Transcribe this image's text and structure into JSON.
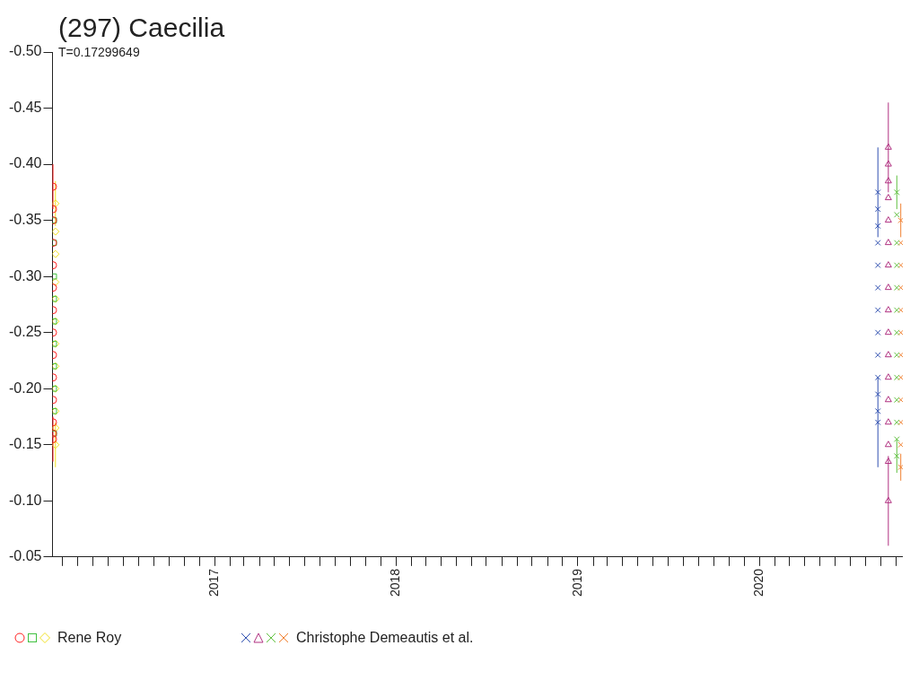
{
  "chart_data": {
    "type": "scatter",
    "title": "(297) Caecilia",
    "subtitle": "T=0.17299649",
    "xlim": [
      "2016-02-10",
      "2020-10-15"
    ],
    "ylim": [
      -0.05,
      -0.5
    ],
    "yticks": [
      {
        "value": -0.5,
        "label": "-0.50"
      },
      {
        "value": -0.45,
        "label": "-0.45"
      },
      {
        "value": -0.4,
        "label": "-0.40"
      },
      {
        "value": -0.35,
        "label": "-0.35"
      },
      {
        "value": -0.3,
        "label": "-0.30"
      },
      {
        "value": -0.25,
        "label": "-0.25"
      },
      {
        "value": -0.2,
        "label": "-0.20"
      },
      {
        "value": -0.15,
        "label": "-0.15"
      },
      {
        "value": -0.1,
        "label": "-0.10"
      },
      {
        "value": -0.05,
        "label": "-0.05"
      }
    ],
    "xticks": [
      {
        "value": "2016-03-01",
        "label": null
      },
      {
        "value": "2016-04-01",
        "label": null
      },
      {
        "value": "2016-05-01",
        "label": null
      },
      {
        "value": "2016-06-01",
        "label": null
      },
      {
        "value": "2016-07-01",
        "label": null
      },
      {
        "value": "2016-08-01",
        "label": null
      },
      {
        "value": "2016-09-01",
        "label": null
      },
      {
        "value": "2016-10-01",
        "label": null
      },
      {
        "value": "2016-11-01",
        "label": null
      },
      {
        "value": "2016-12-01",
        "label": null
      },
      {
        "value": "2017-01-01",
        "label": "2017"
      },
      {
        "value": "2017-02-01",
        "label": null
      },
      {
        "value": "2017-03-01",
        "label": null
      },
      {
        "value": "2017-04-01",
        "label": null
      },
      {
        "value": "2017-05-01",
        "label": null
      },
      {
        "value": "2017-06-01",
        "label": null
      },
      {
        "value": "2017-07-01",
        "label": null
      },
      {
        "value": "2017-08-01",
        "label": null
      },
      {
        "value": "2017-09-01",
        "label": null
      },
      {
        "value": "2017-10-01",
        "label": null
      },
      {
        "value": "2017-11-01",
        "label": null
      },
      {
        "value": "2017-12-01",
        "label": null
      },
      {
        "value": "2018-01-01",
        "label": "2018"
      },
      {
        "value": "2018-02-01",
        "label": null
      },
      {
        "value": "2018-03-01",
        "label": null
      },
      {
        "value": "2018-04-01",
        "label": null
      },
      {
        "value": "2018-05-01",
        "label": null
      },
      {
        "value": "2018-06-01",
        "label": null
      },
      {
        "value": "2018-07-01",
        "label": null
      },
      {
        "value": "2018-08-01",
        "label": null
      },
      {
        "value": "2018-09-01",
        "label": null
      },
      {
        "value": "2018-10-01",
        "label": null
      },
      {
        "value": "2018-11-01",
        "label": null
      },
      {
        "value": "2018-12-01",
        "label": null
      },
      {
        "value": "2019-01-01",
        "label": "2019"
      },
      {
        "value": "2019-02-01",
        "label": null
      },
      {
        "value": "2019-03-01",
        "label": null
      },
      {
        "value": "2019-04-01",
        "label": null
      },
      {
        "value": "2019-05-01",
        "label": null
      },
      {
        "value": "2019-06-01",
        "label": null
      },
      {
        "value": "2019-07-01",
        "label": null
      },
      {
        "value": "2019-08-01",
        "label": null
      },
      {
        "value": "2019-09-01",
        "label": null
      },
      {
        "value": "2019-10-01",
        "label": null
      },
      {
        "value": "2019-11-01",
        "label": null
      },
      {
        "value": "2019-12-01",
        "label": null
      },
      {
        "value": "2020-01-01",
        "label": "2020"
      },
      {
        "value": "2020-02-01",
        "label": null
      },
      {
        "value": "2020-03-01",
        "label": null
      },
      {
        "value": "2020-04-01",
        "label": null
      },
      {
        "value": "2020-05-01",
        "label": null
      },
      {
        "value": "2020-06-01",
        "label": null
      },
      {
        "value": "2020-07-01",
        "label": null
      },
      {
        "value": "2020-08-01",
        "label": null
      },
      {
        "value": "2020-09-01",
        "label": null
      },
      {
        "value": "2020-10-01",
        "label": null
      }
    ],
    "legend": "bottom",
    "series": [
      {
        "color": "#ff2020",
        "marker": "circle",
        "x": [
          "2016-02-11",
          "2016-02-11",
          "2016-02-11",
          "2016-02-11",
          "2016-02-11",
          "2016-02-11",
          "2016-02-11",
          "2016-02-11",
          "2016-02-11",
          "2016-02-11",
          "2016-02-11",
          "2016-02-11",
          "2016-02-11",
          "2016-02-11"
        ],
        "values": [
          -0.38,
          -0.36,
          -0.35,
          -0.33,
          -0.31,
          -0.29,
          -0.27,
          -0.25,
          -0.23,
          -0.21,
          -0.19,
          -0.17,
          -0.16,
          -0.155
        ],
        "errors": [
          0.02,
          null,
          null,
          null,
          null,
          null,
          null,
          null,
          null,
          null,
          null,
          null,
          null,
          0.02
        ]
      },
      {
        "color": "#40c040",
        "marker": "square",
        "x": [
          "2016-02-13",
          "2016-02-13",
          "2016-02-13",
          "2016-02-13",
          "2016-02-13",
          "2016-02-13",
          "2016-02-13",
          "2016-02-13",
          "2016-02-13",
          "2016-02-13"
        ],
        "values": [
          -0.35,
          -0.33,
          -0.3,
          -0.28,
          -0.26,
          -0.24,
          -0.22,
          -0.2,
          -0.18,
          -0.16
        ]
      },
      {
        "name": "Rene Roy",
        "color": "#f0e020",
        "marker": "diamond",
        "x": [
          "2016-02-16",
          "2016-02-16",
          "2016-02-16",
          "2016-02-16",
          "2016-02-16",
          "2016-02-16",
          "2016-02-16",
          "2016-02-16",
          "2016-02-16",
          "2016-02-16",
          "2016-02-16",
          "2016-02-16"
        ],
        "values": [
          -0.365,
          -0.34,
          -0.32,
          -0.295,
          -0.28,
          -0.26,
          -0.24,
          -0.22,
          -0.2,
          -0.18,
          -0.165,
          -0.15
        ],
        "errors": [
          0.02,
          null,
          null,
          null,
          null,
          null,
          null,
          null,
          null,
          null,
          null,
          0.02
        ]
      },
      {
        "color": "#3050b0",
        "marker": "cross",
        "x": [
          "2020-08-26",
          "2020-08-26",
          "2020-08-26",
          "2020-08-26",
          "2020-08-26",
          "2020-08-26",
          "2020-08-26",
          "2020-08-26",
          "2020-08-26",
          "2020-08-26",
          "2020-08-26",
          "2020-08-26",
          "2020-08-26"
        ],
        "values": [
          -0.375,
          -0.36,
          -0.345,
          -0.33,
          -0.31,
          -0.29,
          -0.27,
          -0.25,
          -0.23,
          -0.21,
          -0.195,
          -0.18,
          -0.17
        ],
        "errors": [
          0.04,
          null,
          null,
          null,
          null,
          null,
          null,
          null,
          null,
          null,
          null,
          null,
          0.04
        ]
      },
      {
        "color": "#b03080",
        "marker": "triangle",
        "x": [
          "2020-09-16",
          "2020-09-16",
          "2020-09-16",
          "2020-09-16",
          "2020-09-16",
          "2020-09-16",
          "2020-09-16",
          "2020-09-16",
          "2020-09-16",
          "2020-09-16",
          "2020-09-16",
          "2020-09-16",
          "2020-09-16",
          "2020-09-16",
          "2020-09-16",
          "2020-09-16",
          "2020-09-16"
        ],
        "values": [
          -0.415,
          -0.4,
          -0.385,
          -0.37,
          -0.35,
          -0.33,
          -0.31,
          -0.29,
          -0.27,
          -0.25,
          -0.23,
          -0.21,
          -0.19,
          -0.17,
          -0.15,
          -0.135,
          -0.1
        ],
        "errors": [
          0.04,
          null,
          null,
          null,
          null,
          null,
          null,
          null,
          null,
          null,
          null,
          null,
          null,
          null,
          null,
          null,
          0.04
        ]
      },
      {
        "color": "#60c040",
        "marker": "cross",
        "x": [
          "2020-10-03",
          "2020-10-03",
          "2020-10-03",
          "2020-10-03",
          "2020-10-03",
          "2020-10-03",
          "2020-10-03",
          "2020-10-03",
          "2020-10-03",
          "2020-10-03",
          "2020-10-03",
          "2020-10-03",
          "2020-10-03"
        ],
        "values": [
          -0.375,
          -0.355,
          -0.33,
          -0.31,
          -0.29,
          -0.27,
          -0.25,
          -0.23,
          -0.21,
          -0.19,
          -0.17,
          -0.155,
          -0.14
        ],
        "errors": [
          0.015,
          null,
          null,
          null,
          null,
          null,
          null,
          null,
          null,
          null,
          null,
          null,
          0.015
        ]
      },
      {
        "name": "Christophe Demeautis et al.",
        "color": "#f08030",
        "marker": "cross",
        "x": [
          "2020-10-11",
          "2020-10-11",
          "2020-10-11",
          "2020-10-11",
          "2020-10-11",
          "2020-10-11",
          "2020-10-11",
          "2020-10-11",
          "2020-10-11",
          "2020-10-11",
          "2020-10-11",
          "2020-10-11"
        ],
        "values": [
          -0.35,
          -0.33,
          -0.31,
          -0.29,
          -0.27,
          -0.25,
          -0.23,
          -0.21,
          -0.19,
          -0.17,
          -0.15,
          -0.13
        ],
        "errors": [
          0.015,
          null,
          null,
          null,
          null,
          null,
          null,
          null,
          null,
          null,
          null,
          0.012
        ]
      }
    ]
  }
}
